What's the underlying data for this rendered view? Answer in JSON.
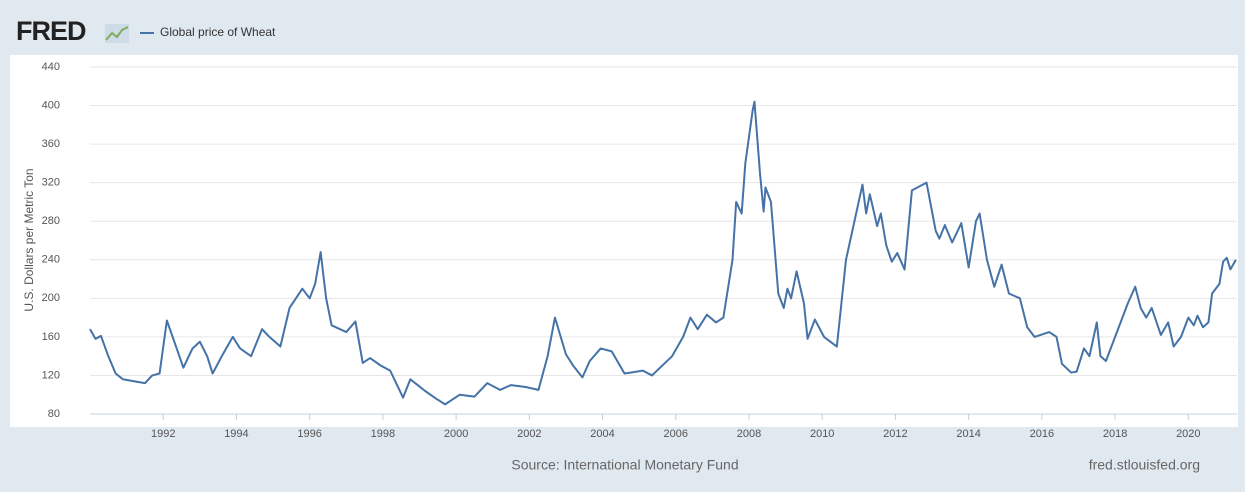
{
  "chart_data": {
    "type": "line",
    "brand": "FRED",
    "ylabel": "U.S. Dollars per Metric Ton",
    "source": "Source: International Monetary Fund",
    "site": "fred.stlouisfed.org",
    "xlim": [
      1990,
      2021.33
    ],
    "xticks": [
      1992,
      1994,
      1996,
      1998,
      2000,
      2002,
      2004,
      2006,
      2008,
      2010,
      2012,
      2014,
      2016,
      2018,
      2020
    ],
    "ylim": [
      80,
      440
    ],
    "yticks": [
      80,
      120,
      160,
      200,
      240,
      280,
      320,
      360,
      400,
      440
    ],
    "grid": true,
    "legend": "top-left",
    "x": [
      1990.0,
      1990.15,
      1990.3,
      1990.5,
      1990.7,
      1990.9,
      1991.2,
      1991.5,
      1991.7,
      1991.9,
      1992.1,
      1992.35,
      1992.55,
      1992.8,
      1993.0,
      1993.2,
      1993.35,
      1993.6,
      1993.9,
      1994.1,
      1994.4,
      1994.7,
      1994.9,
      1995.2,
      1995.45,
      1995.8,
      1996.0,
      1996.15,
      1996.3,
      1996.45,
      1996.6,
      1997.0,
      1997.25,
      1997.45,
      1997.65,
      1997.95,
      1998.2,
      1998.55,
      1998.75,
      1998.95,
      1999.15,
      1999.45,
      1999.7,
      2000.1,
      2000.5,
      2000.85,
      2001.2,
      2001.5,
      2001.9,
      2002.25,
      2002.5,
      2002.7,
      2003.0,
      2003.2,
      2003.45,
      2003.65,
      2003.95,
      2004.25,
      2004.6,
      2005.1,
      2005.35,
      2005.9,
      2006.2,
      2006.4,
      2006.6,
      2006.85,
      2007.1,
      2007.3,
      2007.55,
      2007.65,
      2007.8,
      2007.9,
      2008.1,
      2008.15,
      2008.3,
      2008.4,
      2008.45,
      2008.6,
      2008.8,
      2008.95,
      2009.05,
      2009.15,
      2009.3,
      2009.5,
      2009.6,
      2009.8,
      2010.05,
      2010.4,
      2010.65,
      2011.1,
      2011.2,
      2011.3,
      2011.5,
      2011.6,
      2011.75,
      2011.9,
      2012.05,
      2012.25,
      2012.45,
      2012.85,
      2013.1,
      2013.2,
      2013.35,
      2013.55,
      2013.8,
      2014.0,
      2014.2,
      2014.3,
      2014.5,
      2014.7,
      2014.9,
      2015.1,
      2015.4,
      2015.6,
      2015.8,
      2016.2,
      2016.4,
      2016.55,
      2016.8,
      2016.95,
      2017.15,
      2017.3,
      2017.5,
      2017.6,
      2017.75,
      2018.0,
      2018.2,
      2018.35,
      2018.55,
      2018.7,
      2018.85,
      2019.0,
      2019.25,
      2019.45,
      2019.6,
      2019.8,
      2020.0,
      2020.15,
      2020.25,
      2020.4,
      2020.55,
      2020.65,
      2020.85,
      2020.95,
      2021.05,
      2021.15,
      2021.3
    ],
    "series": [
      {
        "name": "Global price of Wheat",
        "color": "#4572a7",
        "values": [
          168,
          158,
          161,
          140,
          122,
          116,
          114,
          112,
          120,
          122,
          177,
          150,
          128,
          148,
          155,
          140,
          122,
          140,
          160,
          148,
          140,
          168,
          160,
          150,
          190,
          210,
          200,
          215,
          248,
          200,
          172,
          165,
          176,
          133,
          138,
          130,
          125,
          97,
          116,
          110,
          104,
          96,
          90,
          100,
          98,
          112,
          105,
          110,
          108,
          105,
          140,
          180,
          142,
          130,
          118,
          135,
          148,
          145,
          122,
          125,
          120,
          140,
          160,
          180,
          168,
          183,
          175,
          180,
          240,
          300,
          288,
          340,
          395,
          404,
          330,
          290,
          315,
          300,
          205,
          190,
          210,
          200,
          228,
          195,
          158,
          178,
          160,
          150,
          240,
          318,
          288,
          308,
          275,
          288,
          255,
          238,
          247,
          230,
          312,
          320,
          270,
          262,
          276,
          258,
          278,
          232,
          280,
          288,
          240,
          212,
          235,
          205,
          200,
          170,
          160,
          165,
          160,
          132,
          123,
          124,
          148,
          140,
          175,
          140,
          135,
          160,
          180,
          195,
          212,
          190,
          180,
          190,
          162,
          175,
          150,
          160,
          180,
          172,
          182,
          170,
          175,
          205,
          215,
          238,
          242,
          230,
          240
        ]
      }
    ]
  }
}
